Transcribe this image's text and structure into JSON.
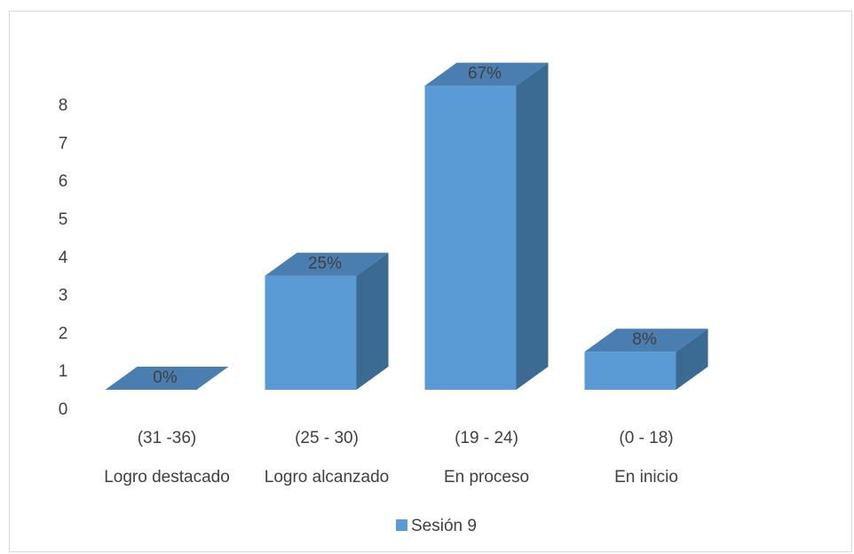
{
  "chart_data": {
    "type": "bar",
    "three_d": true,
    "categories": [
      [
        "(31 -36)",
        "Logro destacado"
      ],
      [
        "(25 - 30)",
        "Logro alcanzado"
      ],
      [
        "(19 - 24)",
        "En proceso"
      ],
      [
        "(0 - 18)",
        "En inicio"
      ]
    ],
    "series": [
      {
        "name": "Sesión 9",
        "values": [
          0,
          3,
          8,
          1
        ],
        "labels": [
          "0%",
          "25%",
          "67%",
          "8%"
        ]
      }
    ],
    "y_ticks": [
      0,
      1,
      2,
      3,
      4,
      5,
      6,
      7,
      8
    ],
    "ylim": [
      0,
      8
    ],
    "grid": false,
    "legend_position": "bottom",
    "colors": {
      "front": "#5b9bd5",
      "top": "#4a7eb0",
      "side": "#3b6b93",
      "text": "#404040"
    }
  }
}
